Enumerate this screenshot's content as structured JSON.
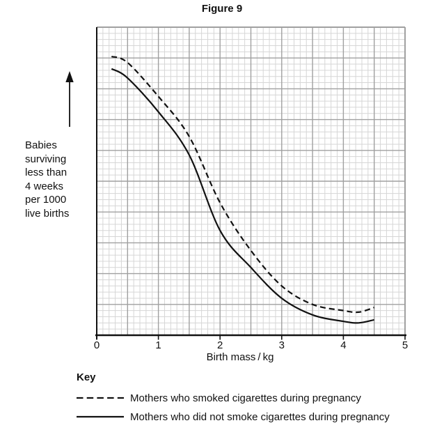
{
  "figure": {
    "title": "Figure 9"
  },
  "y_axis_annotation": {
    "lines": [
      "Babies",
      "surviving",
      "less than",
      "4 weeks",
      "per 1000",
      "live births"
    ],
    "arrow_icon": "up-arrow-icon"
  },
  "x_axis": {
    "label": "Birth mass / kg",
    "ticks": [
      "0",
      "1",
      "2",
      "3",
      "4",
      "5"
    ]
  },
  "key": {
    "title": "Key",
    "entries": [
      {
        "style": "dashed",
        "label": "Mothers who smoked cigarettes during pregnancy"
      },
      {
        "style": "solid",
        "label": "Mothers who did not smoke cigarettes during pregnancy"
      }
    ]
  },
  "chart_data": {
    "type": "line",
    "title": "Figure 9",
    "xlabel": "Birth mass/kg",
    "ylabel": "Babies surviving less than 4 weeks per 1000 live births",
    "xlim": [
      0,
      5
    ],
    "ylim": [
      0,
      10
    ],
    "y_unit": "major grid divisions (y axis carries no printed numbers)",
    "grid": {
      "x_minor_step": 0.1,
      "x_major_step": 0.5,
      "y_minor_step": 0.2,
      "y_major_step": 1,
      "visible": true
    },
    "legend_position": "below-chart",
    "series": [
      {
        "name": "Mothers who smoked cigarettes during pregnancy",
        "line": "dashed",
        "points": [
          [
            0.24,
            9.05
          ],
          [
            0.5,
            8.85
          ],
          [
            1.0,
            7.75
          ],
          [
            1.5,
            6.45
          ],
          [
            2.0,
            4.3
          ],
          [
            2.5,
            2.75
          ],
          [
            3.0,
            1.6
          ],
          [
            3.5,
            1.0
          ],
          [
            4.0,
            0.8
          ],
          [
            4.25,
            0.75
          ],
          [
            4.5,
            0.9
          ]
        ]
      },
      {
        "name": "Mothers who did not smoke cigarettes during pregnancy",
        "line": "solid",
        "points": [
          [
            0.24,
            8.65
          ],
          [
            0.5,
            8.35
          ],
          [
            1.0,
            7.25
          ],
          [
            1.5,
            5.85
          ],
          [
            2.0,
            3.4
          ],
          [
            2.5,
            2.2
          ],
          [
            3.0,
            1.2
          ],
          [
            3.5,
            0.66
          ],
          [
            4.0,
            0.45
          ],
          [
            4.25,
            0.4
          ],
          [
            4.5,
            0.5
          ]
        ]
      }
    ],
    "colors": {
      "curve": "#111111",
      "grid_minor": "#d6d6d6",
      "grid_major": "#a0a0a0",
      "axis": "#111111",
      "background": "#ffffff"
    }
  }
}
